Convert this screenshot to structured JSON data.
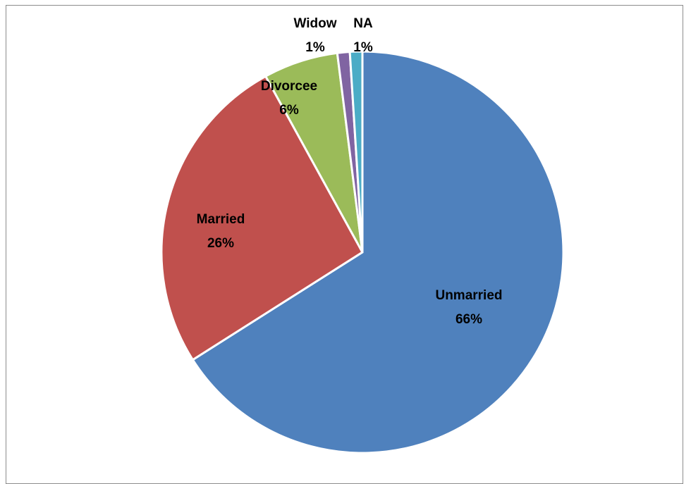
{
  "chart_data": {
    "type": "pie",
    "title": "",
    "slices": [
      {
        "name": "Unmarried",
        "value": 66,
        "label": "66%",
        "color": "#4f81bd"
      },
      {
        "name": "Married",
        "value": 26,
        "label": "26%",
        "color": "#c0504d"
      },
      {
        "name": "Divorcee",
        "value": 6,
        "label": "6%",
        "color": "#9bbb59"
      },
      {
        "name": "Widow",
        "value": 1,
        "label": "1%",
        "color": "#8064a2"
      },
      {
        "name": "NA",
        "value": 1,
        "label": "1%",
        "color": "#4bacc6"
      }
    ],
    "legend": "none",
    "data_labels": "category and percentage"
  }
}
